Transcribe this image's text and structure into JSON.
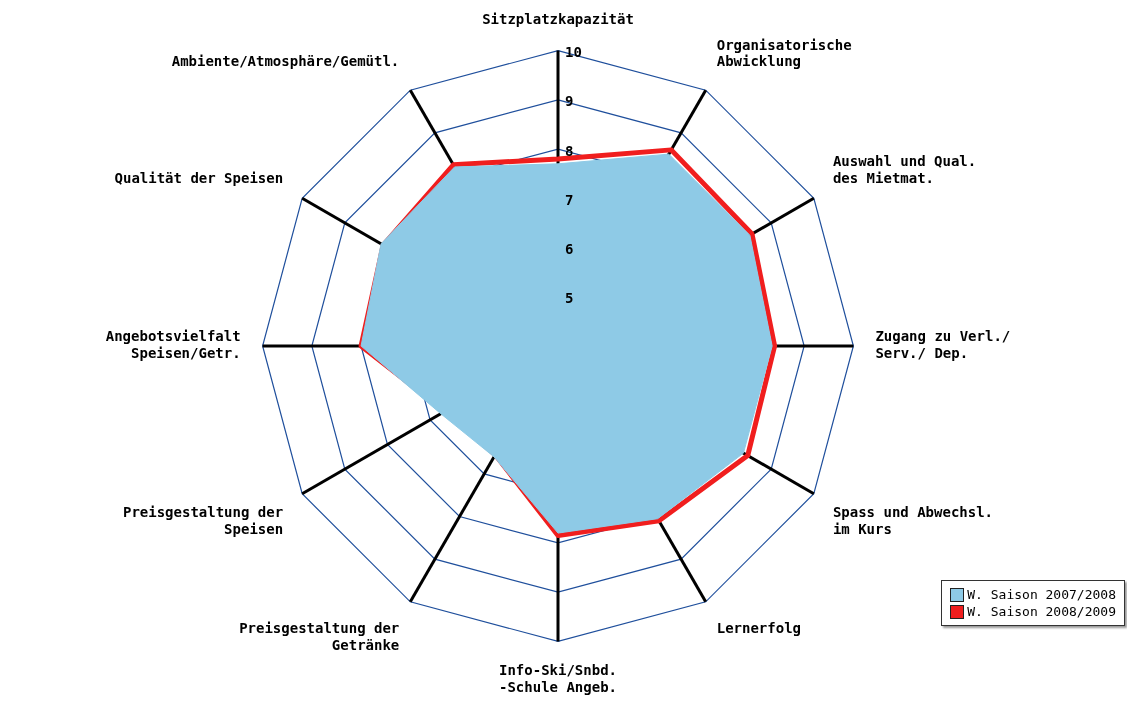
{
  "chart_data": {
    "type": "radar",
    "categories": [
      "Sitzplatzkapazität",
      "Organisatorische\nAbwicklung",
      "Auswahl und Qual.\ndes Mietmat.",
      "Zugang zu Verl./\nServ./ Dep.",
      "Spass und Abwechsl.\nim Kurs",
      "Lernerfolg",
      "Info-Ski/Snbd.\n-Schule Angeb.",
      "Preisgestaltung der\nGetränke",
      "Preisgestaltung der\nSpeisen",
      "Angebotsvielfalt\nSpeisen/Getr.",
      "Qualität der Speisen",
      "Ambiente/Atmosphäre/Gemütl."
    ],
    "series": [
      {
        "name": "W. Saison 2007/2008",
        "color": "#8ecae6",
        "values": [
          7.7,
          8.5,
          8.5,
          8.35,
          8.35,
          8.05,
          7.8,
          6.6,
          6.75,
          8.0,
          8.15,
          8.2
        ]
      },
      {
        "name": "W. Saison 2008/2009",
        "color": "#f01e1e",
        "values": [
          7.8,
          8.6,
          8.55,
          8.4,
          8.45,
          8.1,
          7.85,
          6.55,
          6.65,
          8.0,
          8.1,
          8.25
        ]
      }
    ],
    "ylim": [
      4,
      10
    ],
    "yticks": [
      5,
      6,
      7,
      8,
      9,
      10
    ],
    "grid": true,
    "legend": "bottom right",
    "marker": "none"
  }
}
